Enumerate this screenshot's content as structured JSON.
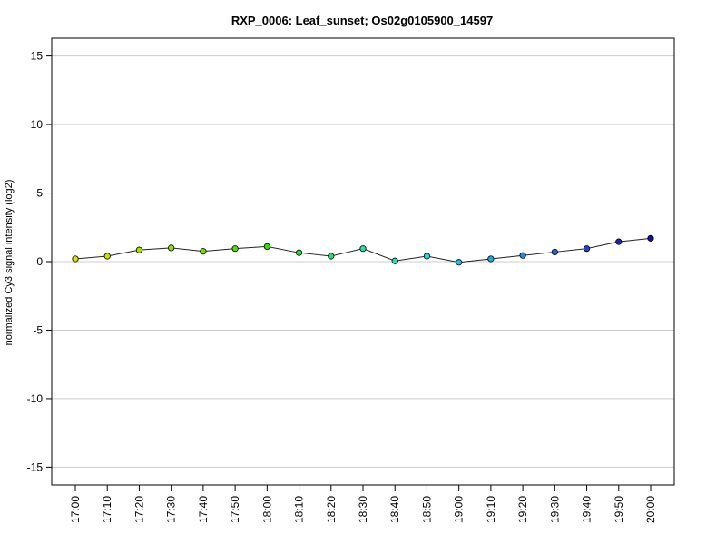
{
  "chart_data": {
    "type": "line",
    "title": "RXP_0006: Leaf_sunset; Os02g0105900_14597",
    "xlabel": "",
    "ylabel": "normalized Cy3 signal intensity (log2)",
    "ylim": [
      -16.3,
      16.3
    ],
    "yticks": [
      -15,
      -10,
      -5,
      0,
      5,
      10,
      15
    ],
    "grid": true,
    "categories": [
      "17:00",
      "17:10",
      "17:20",
      "17:30",
      "17:40",
      "17:50",
      "18:00",
      "18:10",
      "18:20",
      "18:30",
      "18:40",
      "18:50",
      "19:00",
      "19:10",
      "19:20",
      "19:30",
      "19:40",
      "19:50",
      "20:00"
    ],
    "series": [
      {
        "values": [
          0.2,
          0.4,
          0.85,
          1.0,
          0.75,
          0.95,
          1.1,
          0.65,
          0.4,
          0.95,
          0.05,
          0.4,
          -0.05,
          0.2,
          0.45,
          0.7,
          0.95,
          1.45,
          1.7
        ],
        "point_colors": [
          "#e0e000",
          "#c9e000",
          "#a8e000",
          "#8ee000",
          "#70e000",
          "#4ee000",
          "#2ee000",
          "#22e040",
          "#22e070",
          "#22e0a0",
          "#22e0c8",
          "#22d8e0",
          "#22c0e0",
          "#22a8e0",
          "#2288e0",
          "#2266d8",
          "#2244c8",
          "#1a22b8",
          "#1010a8"
        ]
      }
    ]
  }
}
